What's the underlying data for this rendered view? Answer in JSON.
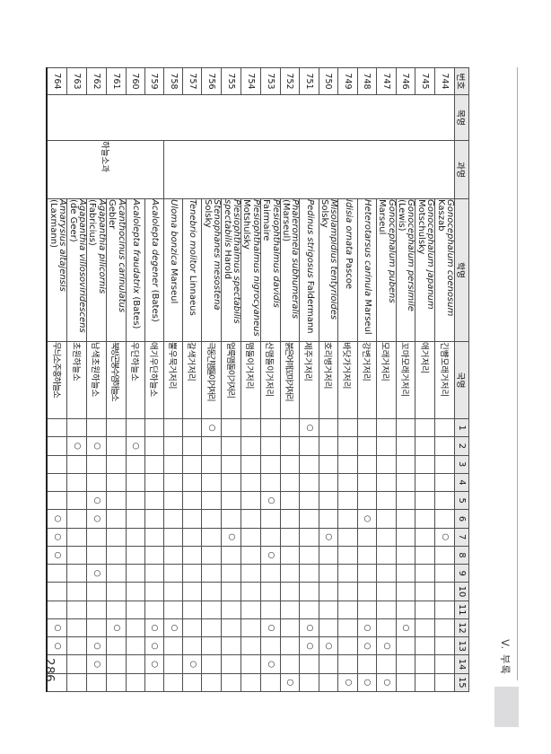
{
  "page": {
    "number": "286",
    "section_label": "V. 부록"
  },
  "table": {
    "headers": {
      "no": "번호",
      "order": "목명",
      "family": "과명",
      "scientific": "학명",
      "korean": "국명"
    },
    "site_headers": [
      "1",
      "2",
      "3",
      "4",
      "5",
      "6",
      "7",
      "8",
      "9",
      "10",
      "11",
      "12",
      "13",
      "14",
      "15"
    ],
    "presence_mark": "○",
    "order_group": {
      "label": "",
      "rowspan": 21
    },
    "family_groups": [
      {
        "label": "",
        "rowspan": 15
      },
      {
        "label": "하늘소과",
        "rowspan": 6
      }
    ],
    "rows": [
      {
        "no": "744",
        "sci": "Gonocephalum coenosum",
        "auth": "Kaszab",
        "kor": "긴뺨모래거저리",
        "sites": [
          7
        ]
      },
      {
        "no": "745",
        "sci": "Gonocephalum japanum",
        "auth": "Motschulsky",
        "kor": "애거저리",
        "sites": []
      },
      {
        "no": "746",
        "sci": "Gonocephalum persimile",
        "auth": "(Lewis)",
        "kor": "꼬마모래거저리",
        "sites": [
          12
        ]
      },
      {
        "no": "747",
        "sci": "Gonocephalum pubens",
        "auth": "Marseul",
        "kor": "모래거저리",
        "sites": [
          13,
          15
        ]
      },
      {
        "no": "748",
        "sci": "Heterotarsus carinula",
        "auth": "Marseul",
        "kor": "강변거저리",
        "sites": [
          6,
          12,
          13,
          15
        ]
      },
      {
        "no": "749",
        "sci": "Idisia ornata",
        "auth": "Pascoe",
        "kor": "바닷가거저리",
        "sites": [
          15
        ]
      },
      {
        "no": "750",
        "sci": "Misolampidius tentyrioides",
        "auth": "Solsky",
        "kor": "호리병거저리",
        "sites": [
          7,
          13
        ]
      },
      {
        "no": "751",
        "sci": "Pedinus strigosus",
        "auth": "Faldermann",
        "kor": "제주거저리",
        "sites": [
          1,
          12,
          13
        ]
      },
      {
        "no": "752",
        "sci": "Phaleromela subhumeralis",
        "auth": "(Marseul)",
        "kor": "붉은어깨꼬마거저리",
        "sites": [
          15
        ]
      },
      {
        "no": "753",
        "sci": "Plesiophthalmus davidis",
        "auth": "Fairmaire",
        "kor": "산맴돌이거저리",
        "sites": [
          5,
          8,
          12,
          14
        ]
      },
      {
        "no": "754",
        "sci": "Plesiophthalmus nigrocyaneus",
        "auth": "Motshulsky",
        "kor": "맴돌이거저리",
        "sites": []
      },
      {
        "no": "755",
        "sci": "Plesiophthalmus spectabilis spectabilis",
        "auth": "Harold",
        "kor": "얼룩맴돌이거저리",
        "sites": [
          7
        ]
      },
      {
        "no": "756",
        "sci": "Stenophanes mesostena",
        "auth": "Solsky",
        "kor": "극동긴맴돌이거저리",
        "sites": [
          1
        ]
      },
      {
        "no": "757",
        "sci": "Tenebrio molitor",
        "auth": "Linnaeus",
        "kor": "갈색거저리",
        "sites": [
          14
        ]
      },
      {
        "no": "758",
        "sci": "Uloma bonzica",
        "auth": "Marseul",
        "kor": "뿔우묵거저리",
        "sites": [
          12
        ]
      },
      {
        "no": "759",
        "sci": "Acalolepta degener",
        "auth": "(Bates)",
        "kor": "애기우단하늘소",
        "sites": [
          12,
          13,
          14
        ]
      },
      {
        "no": "760",
        "sci": "Acalolepta fraudatrix",
        "auth": "(Bates)",
        "kor": "우단하늘소",
        "sites": [
          2
        ]
      },
      {
        "no": "761",
        "sci": "Acanthocinus carinulatus",
        "auth": "Gebler",
        "kor": "북방곤봉수염하늘소",
        "sites": [
          12
        ]
      },
      {
        "no": "762",
        "sci": "Agapanthia pilicornis",
        "auth": "(Fabricius)",
        "kor": "남색초원하늘소",
        "sites": [
          2,
          5,
          6,
          9,
          13,
          14
        ]
      },
      {
        "no": "763",
        "sci": "Agapanthia villosoviridescens",
        "auth": "(de Geer)",
        "kor": "초원하늘소",
        "sites": [
          2
        ]
      },
      {
        "no": "764",
        "sci": "Amarysius altajensis",
        "auth": "(Laxmann)",
        "kor": "무늬소주홍하늘소",
        "sites": [
          6,
          7,
          8,
          12,
          13
        ]
      }
    ]
  }
}
